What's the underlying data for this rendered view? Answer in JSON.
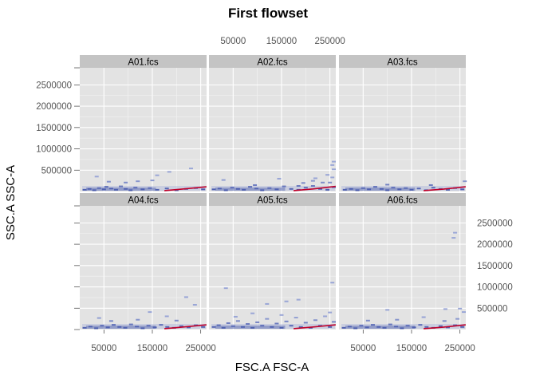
{
  "chart_data": {
    "type": "heatmap",
    "title": "First flowset",
    "xlabel": "FSC.A FSC-A",
    "ylabel": "SSC.A SSC-A",
    "xlim": [
      0,
      262144
    ],
    "ylim": [
      0,
      2900000
    ],
    "x_ticks": [
      50000,
      150000,
      250000
    ],
    "x_tick_labels": [
      "50000",
      "150000",
      "250000"
    ],
    "y_ticks": [
      500000,
      1000000,
      1500000,
      2000000,
      2500000
    ],
    "y_tick_labels": [
      "500000",
      "1000000",
      "1500000",
      "2000000",
      "2500000"
    ],
    "grid": true,
    "layout": {
      "columns": 3,
      "rows": 2
    },
    "colors": {
      "panel_background": "#e3e3e3",
      "strip_background": "#c4c4c4",
      "density_low": "#9aa6d6",
      "density_high": "#2b3f9e",
      "gate_curve": "#c0002a"
    },
    "panels": [
      {
        "name": "A01.fcs",
        "density": [
          [
            10000,
            40000
          ],
          [
            20000,
            60000
          ],
          [
            30000,
            30000
          ],
          [
            40000,
            80000
          ],
          [
            50000,
            50000
          ],
          [
            55000,
            110000
          ],
          [
            65000,
            70000
          ],
          [
            75000,
            40000
          ],
          [
            85000,
            120000
          ],
          [
            95000,
            60000
          ],
          [
            105000,
            30000
          ],
          [
            115000,
            90000
          ],
          [
            130000,
            50000
          ],
          [
            145000,
            80000
          ],
          [
            160000,
            40000
          ],
          [
            180000,
            70000
          ],
          [
            200000,
            30000
          ],
          [
            220000,
            60000
          ],
          [
            240000,
            80000
          ],
          [
            255000,
            50000
          ],
          [
            60000,
            230000
          ],
          [
            120000,
            240000
          ],
          [
            150000,
            260000
          ],
          [
            160000,
            380000
          ],
          [
            185000,
            460000
          ],
          [
            230000,
            540000
          ],
          [
            35000,
            350000
          ],
          [
            95000,
            210000
          ]
        ],
        "gate_curve": [
          [
            175000,
            20000
          ],
          [
            210000,
            55000
          ],
          [
            262000,
            110000
          ]
        ]
      },
      {
        "name": "A02.fcs",
        "density": [
          [
            10000,
            50000
          ],
          [
            22000,
            70000
          ],
          [
            35000,
            30000
          ],
          [
            48000,
            90000
          ],
          [
            60000,
            60000
          ],
          [
            72000,
            40000
          ],
          [
            85000,
            110000
          ],
          [
            98000,
            70000
          ],
          [
            110000,
            30000
          ],
          [
            125000,
            80000
          ],
          [
            140000,
            50000
          ],
          [
            155000,
            120000
          ],
          [
            170000,
            60000
          ],
          [
            185000,
            40000
          ],
          [
            200000,
            90000
          ],
          [
            215000,
            130000
          ],
          [
            230000,
            60000
          ],
          [
            245000,
            40000
          ],
          [
            258000,
            100000
          ],
          [
            30000,
            270000
          ],
          [
            95000,
            150000
          ],
          [
            145000,
            300000
          ],
          [
            185000,
            130000
          ],
          [
            215000,
            250000
          ],
          [
            220000,
            310000
          ],
          [
            235000,
            210000
          ],
          [
            250000,
            210000
          ],
          [
            255000,
            330000
          ],
          [
            245000,
            390000
          ],
          [
            258000,
            520000
          ],
          [
            255000,
            620000
          ],
          [
            258000,
            700000
          ],
          [
            195000,
            200000
          ]
        ],
        "gate_curve": [
          [
            175000,
            20000
          ],
          [
            215000,
            60000
          ],
          [
            262000,
            120000
          ]
        ]
      },
      {
        "name": "A03.fcs",
        "density": [
          [
            12000,
            40000
          ],
          [
            25000,
            60000
          ],
          [
            38000,
            30000
          ],
          [
            50000,
            80000
          ],
          [
            62000,
            50000
          ],
          [
            75000,
            110000
          ],
          [
            88000,
            60000
          ],
          [
            100000,
            30000
          ],
          [
            112000,
            90000
          ],
          [
            125000,
            50000
          ],
          [
            138000,
            80000
          ],
          [
            150000,
            40000
          ],
          [
            165000,
            70000
          ],
          [
            180000,
            30000
          ],
          [
            195000,
            90000
          ],
          [
            210000,
            60000
          ],
          [
            225000,
            40000
          ],
          [
            240000,
            80000
          ],
          [
            255000,
            50000
          ],
          [
            100000,
            160000
          ],
          [
            190000,
            150000
          ],
          [
            260000,
            240000
          ]
        ],
        "gate_curve": [
          [
            175000,
            20000
          ],
          [
            215000,
            55000
          ],
          [
            262000,
            110000
          ]
        ]
      },
      {
        "name": "A04.fcs",
        "density": [
          [
            10000,
            40000
          ],
          [
            22000,
            70000
          ],
          [
            34000,
            30000
          ],
          [
            46000,
            90000
          ],
          [
            58000,
            50000
          ],
          [
            70000,
            110000
          ],
          [
            82000,
            60000
          ],
          [
            94000,
            40000
          ],
          [
            106000,
            120000
          ],
          [
            118000,
            70000
          ],
          [
            130000,
            30000
          ],
          [
            142000,
            90000
          ],
          [
            155000,
            50000
          ],
          [
            168000,
            110000
          ],
          [
            181000,
            60000
          ],
          [
            195000,
            40000
          ],
          [
            210000,
            80000
          ],
          [
            225000,
            50000
          ],
          [
            240000,
            100000
          ],
          [
            255000,
            60000
          ],
          [
            40000,
            270000
          ],
          [
            145000,
            410000
          ],
          [
            180000,
            310000
          ],
          [
            200000,
            210000
          ],
          [
            220000,
            760000
          ],
          [
            238000,
            580000
          ],
          [
            65000,
            200000
          ],
          [
            120000,
            230000
          ]
        ],
        "gate_curve": [
          [
            175000,
            20000
          ],
          [
            210000,
            55000
          ],
          [
            262000,
            110000
          ]
        ]
      },
      {
        "name": "A05.fcs",
        "density": [
          [
            10000,
            60000
          ],
          [
            20000,
            100000
          ],
          [
            30000,
            40000
          ],
          [
            40000,
            150000
          ],
          [
            50000,
            80000
          ],
          [
            60000,
            200000
          ],
          [
            70000,
            60000
          ],
          [
            80000,
            130000
          ],
          [
            90000,
            40000
          ],
          [
            100000,
            170000
          ],
          [
            110000,
            90000
          ],
          [
            120000,
            250000
          ],
          [
            130000,
            60000
          ],
          [
            140000,
            140000
          ],
          [
            150000,
            40000
          ],
          [
            160000,
            190000
          ],
          [
            170000,
            90000
          ],
          [
            180000,
            280000
          ],
          [
            190000,
            60000
          ],
          [
            200000,
            160000
          ],
          [
            210000,
            40000
          ],
          [
            220000,
            220000
          ],
          [
            230000,
            90000
          ],
          [
            240000,
            310000
          ],
          [
            250000,
            60000
          ],
          [
            258000,
            180000
          ],
          [
            55000,
            300000
          ],
          [
            150000,
            340000
          ],
          [
            250000,
            400000
          ],
          [
            255000,
            1100000
          ],
          [
            90000,
            380000
          ],
          [
            35000,
            970000
          ],
          [
            120000,
            600000
          ],
          [
            160000,
            660000
          ],
          [
            185000,
            700000
          ]
        ],
        "gate_curve": [
          [
            175000,
            20000
          ],
          [
            215000,
            60000
          ],
          [
            262000,
            110000
          ]
        ]
      },
      {
        "name": "A06.fcs",
        "density": [
          [
            10000,
            40000
          ],
          [
            22000,
            70000
          ],
          [
            34000,
            30000
          ],
          [
            46000,
            90000
          ],
          [
            58000,
            50000
          ],
          [
            70000,
            110000
          ],
          [
            82000,
            60000
          ],
          [
            94000,
            40000
          ],
          [
            106000,
            120000
          ],
          [
            118000,
            70000
          ],
          [
            130000,
            30000
          ],
          [
            142000,
            90000
          ],
          [
            155000,
            50000
          ],
          [
            168000,
            110000
          ],
          [
            181000,
            60000
          ],
          [
            195000,
            40000
          ],
          [
            210000,
            80000
          ],
          [
            225000,
            50000
          ],
          [
            240000,
            100000
          ],
          [
            255000,
            60000
          ],
          [
            100000,
            460000
          ],
          [
            175000,
            290000
          ],
          [
            218000,
            200000
          ],
          [
            245000,
            250000
          ],
          [
            250000,
            490000
          ],
          [
            258000,
            410000
          ],
          [
            220000,
            480000
          ],
          [
            237000,
            2150000
          ],
          [
            240000,
            2270000
          ],
          [
            120000,
            230000
          ],
          [
            60000,
            210000
          ]
        ],
        "gate_curve": [
          [
            175000,
            20000
          ],
          [
            215000,
            55000
          ],
          [
            262000,
            110000
          ]
        ]
      }
    ]
  }
}
